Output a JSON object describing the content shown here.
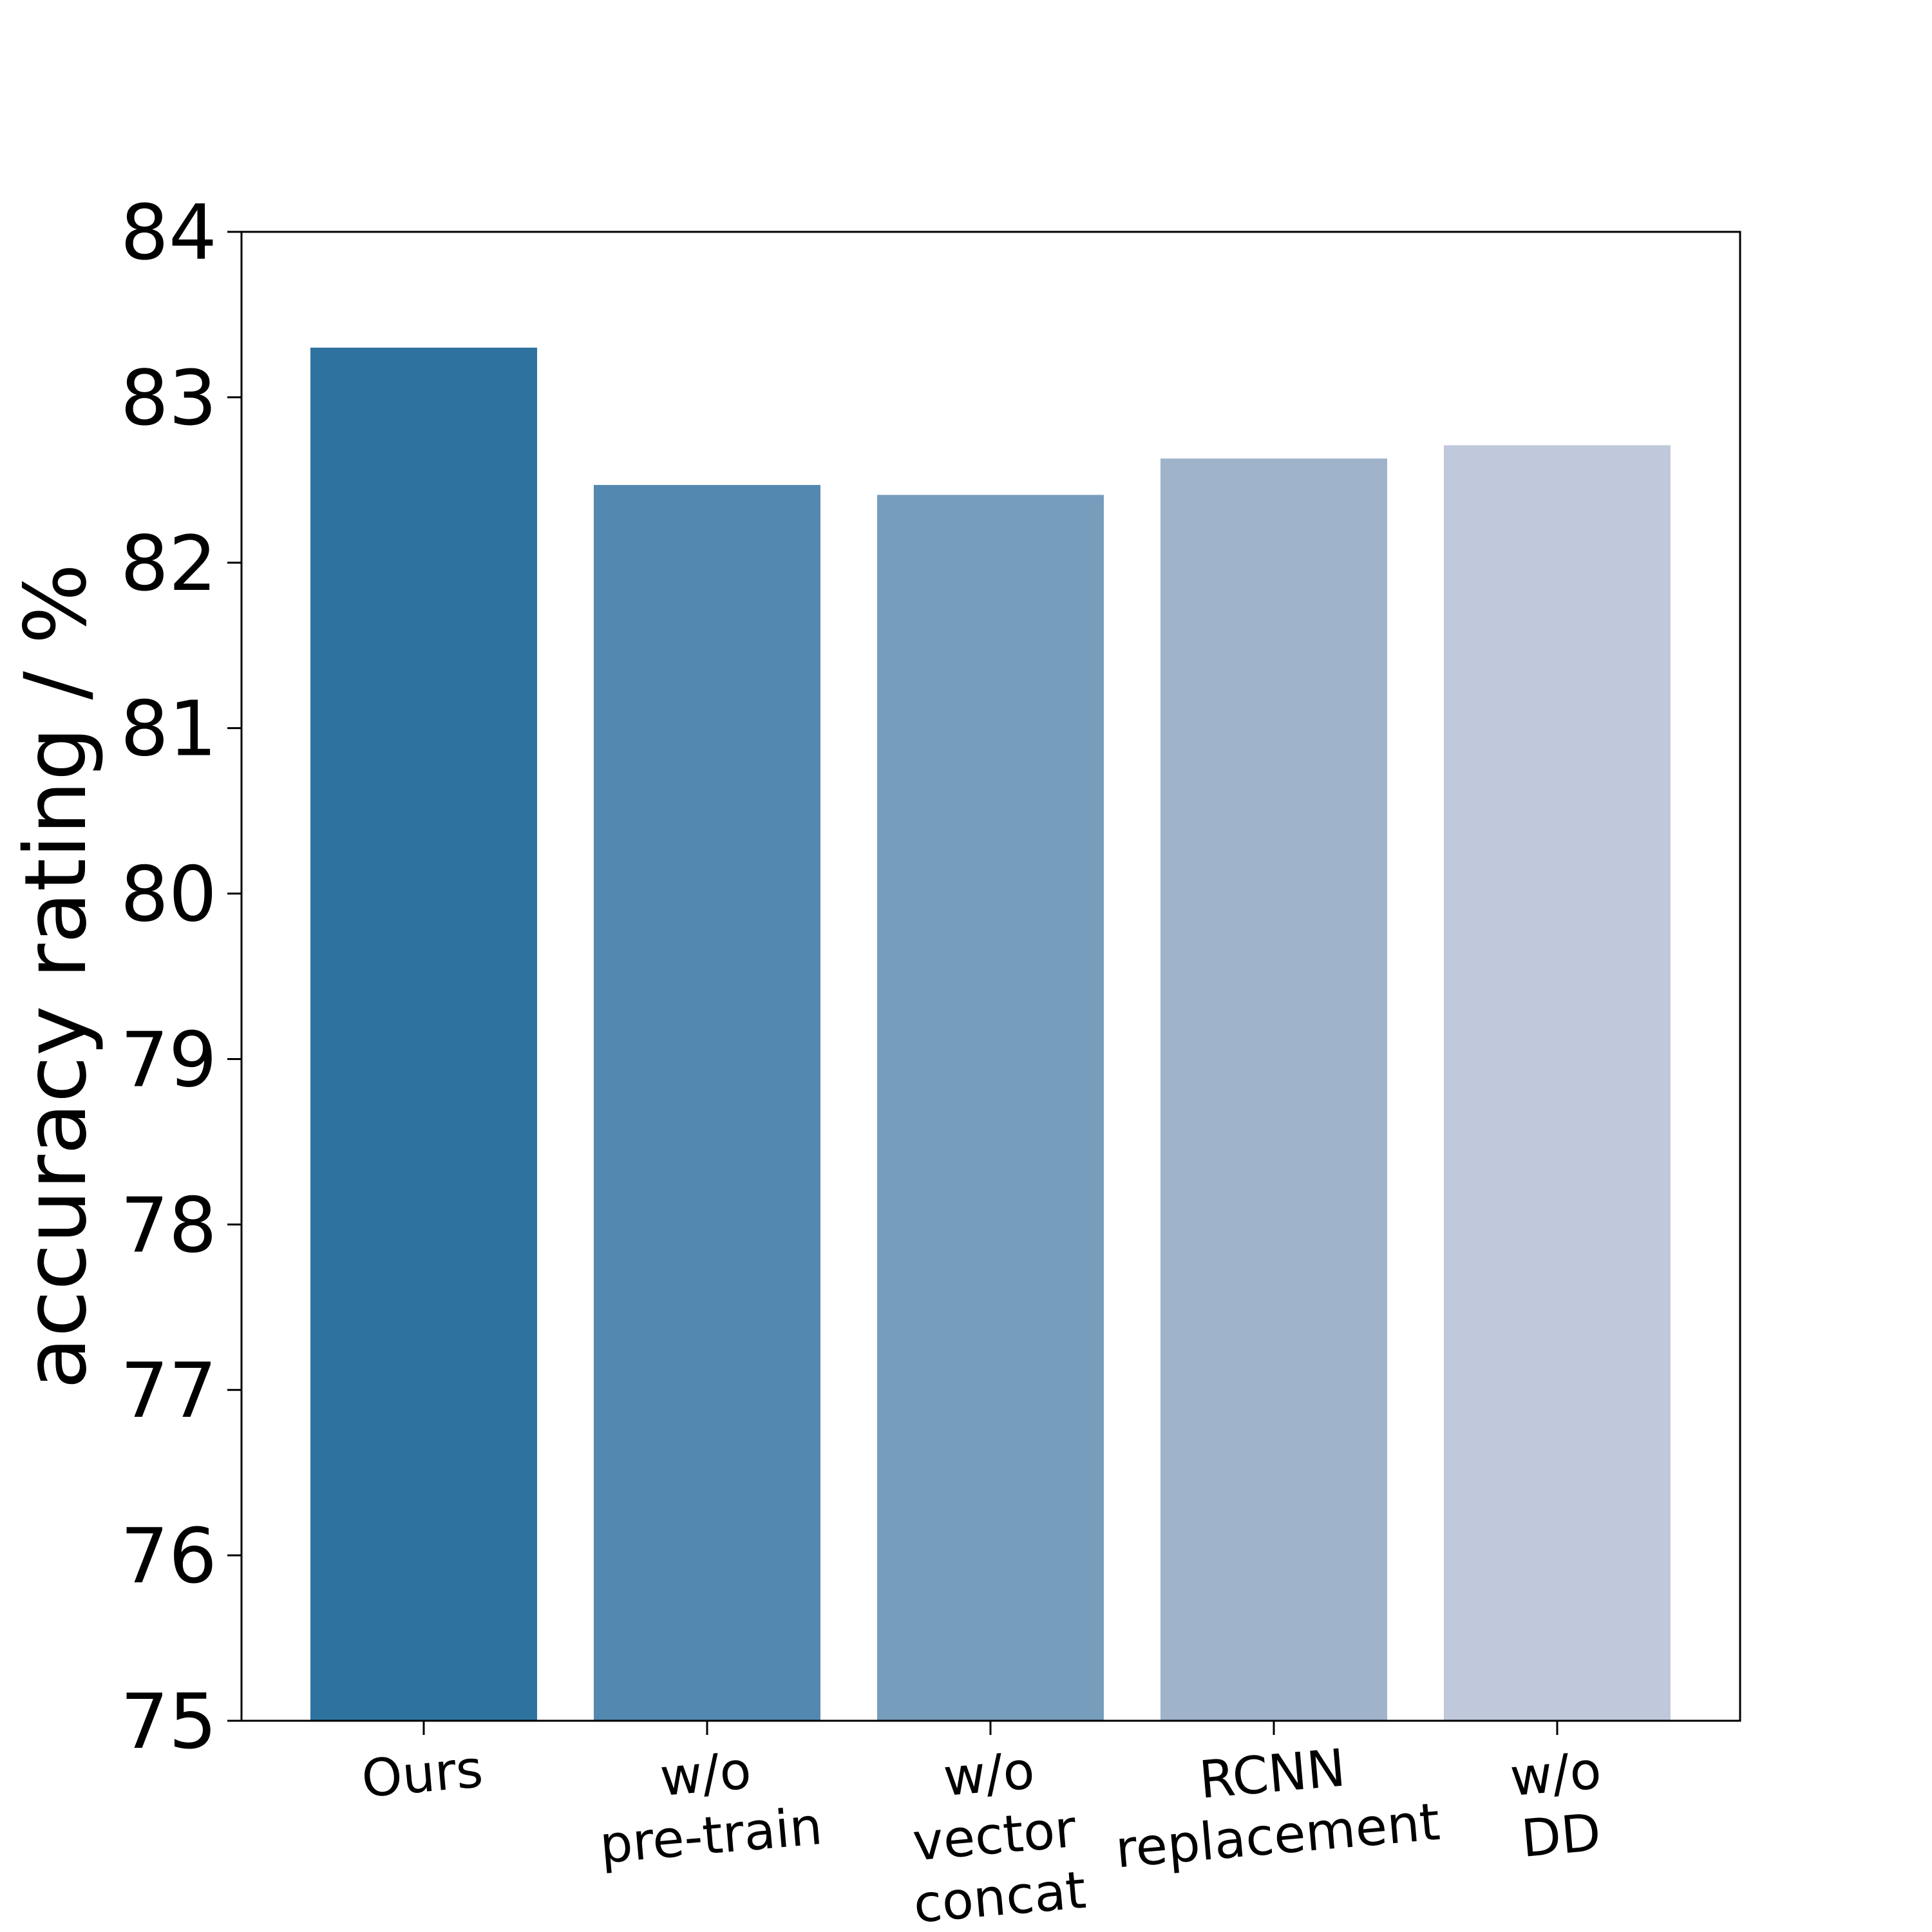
{
  "chart_data": {
    "type": "bar",
    "title": "",
    "xlabel": "",
    "ylabel": "accuracy rating / %",
    "categories": [
      [
        "Ours"
      ],
      [
        "w/o",
        "pre-train"
      ],
      [
        "w/o",
        "vector",
        "concat"
      ],
      [
        "RCNN",
        "replacement"
      ],
      [
        "w/o",
        "DD"
      ]
    ],
    "values": [
      83.3,
      82.47,
      82.41,
      82.63,
      82.71
    ],
    "colors": [
      "#2e73a0",
      "#5389b0",
      "#779dbd",
      "#9fb3cb",
      "#c0c9db"
    ],
    "ylim": [
      75,
      84
    ],
    "yticks": [
      "75",
      "76",
      "77",
      "78",
      "79",
      "80",
      "81",
      "82",
      "83",
      "84"
    ],
    "x_tick_rotation_deg": -5,
    "grid": false,
    "legend": "none"
  }
}
